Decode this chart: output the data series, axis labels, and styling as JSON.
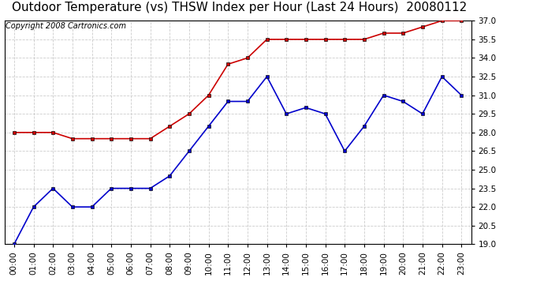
{
  "title": "Outdoor Temperature (vs) THSW Index per Hour (Last 24 Hours)  20080112",
  "copyright": "Copyright 2008 Cartronics.com",
  "background_color": "#ffffff",
  "plot_background": "#ffffff",
  "grid_color": "#cccccc",
  "hours": [
    0,
    1,
    2,
    3,
    4,
    5,
    6,
    7,
    8,
    9,
    10,
    11,
    12,
    13,
    14,
    15,
    16,
    17,
    18,
    19,
    20,
    21,
    22,
    23
  ],
  "x_labels": [
    "00:00",
    "01:00",
    "02:00",
    "03:00",
    "04:00",
    "05:00",
    "06:00",
    "07:00",
    "08:00",
    "09:00",
    "10:00",
    "11:00",
    "12:00",
    "13:00",
    "14:00",
    "15:00",
    "16:00",
    "17:00",
    "18:00",
    "19:00",
    "20:00",
    "21:00",
    "22:00",
    "23:00"
  ],
  "blue_data": [
    19.0,
    22.0,
    23.5,
    22.0,
    22.0,
    23.5,
    23.5,
    23.5,
    24.5,
    26.5,
    28.5,
    30.5,
    30.5,
    32.5,
    29.5,
    30.0,
    29.5,
    26.5,
    28.5,
    31.0,
    30.5,
    29.5,
    32.5,
    31.0
  ],
  "red_data": [
    28.0,
    28.0,
    28.0,
    27.5,
    27.5,
    27.5,
    27.5,
    27.5,
    28.5,
    29.5,
    31.0,
    33.5,
    34.0,
    35.5,
    35.5,
    35.5,
    35.5,
    35.5,
    35.5,
    36.0,
    36.0,
    36.5,
    37.0,
    37.0
  ],
  "blue_color": "#0000cc",
  "red_color": "#cc0000",
  "ylim_min": 19.0,
  "ylim_max": 37.0,
  "ytick_step": 1.5,
  "marker_size": 3,
  "line_width": 1.2,
  "title_fontsize": 11,
  "axis_fontsize": 7.5,
  "copyright_fontsize": 7
}
